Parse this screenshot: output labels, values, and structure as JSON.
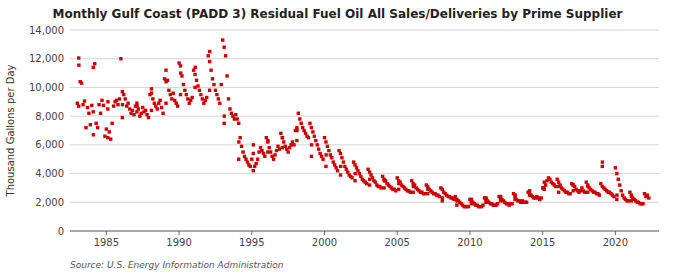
{
  "chart_data": {
    "type": "scatter",
    "title": "Monthly Gulf Coast (PADD 3) Residual Fuel Oil All Sales/Deliveries by Prime Supplier",
    "y_label": "Thousand Gallons per Day",
    "source": "Source: U.S. Energy Information Administration",
    "color": "#cc0000",
    "marker": "square",
    "grid": true,
    "xlim": [
      1982.5,
      2023
    ],
    "xticks": [
      1985,
      1990,
      1995,
      2000,
      2005,
      2010,
      2015,
      2020
    ],
    "ylim": [
      0,
      14000
    ],
    "yticks": [
      0,
      {
        "value": 2000,
        "label": "2,000"
      },
      {
        "value": 4000,
        "label": "4,000"
      },
      {
        "value": 6000,
        "label": "6,000"
      },
      {
        "value": 8000,
        "label": "8,000"
      },
      {
        "value": 10000,
        "label": "10,000"
      },
      {
        "value": 12000,
        "label": "12,000"
      },
      {
        "value": 14000,
        "label": "14,000"
      }
    ],
    "x": [
      1983.0,
      1983.1,
      1983.2,
      1983.3,
      1983.4,
      1983.5,
      1983.6,
      1983.7,
      1983.8,
      1983.9,
      1983.1,
      1983.11,
      1984.0,
      1984.1,
      1984.2,
      1984.3,
      1984.4,
      1984.5,
      1984.6,
      1984.7,
      1984.8,
      1984.9,
      1984.1,
      1984.11,
      1985.0,
      1985.1,
      1985.2,
      1985.3,
      1985.4,
      1985.5,
      1985.6,
      1985.7,
      1985.8,
      1985.9,
      1985.1,
      1985.11,
      1986.0,
      1986.1,
      1986.2,
      1986.3,
      1986.4,
      1986.5,
      1986.6,
      1986.7,
      1986.8,
      1986.9,
      1986.1,
      1986.11,
      1987.0,
      1987.1,
      1987.2,
      1987.3,
      1987.4,
      1987.5,
      1987.6,
      1987.7,
      1987.8,
      1987.9,
      1987.1,
      1987.11,
      1988.0,
      1988.1,
      1988.2,
      1988.3,
      1988.4,
      1988.5,
      1988.6,
      1988.7,
      1988.8,
      1988.9,
      1988.1,
      1988.11,
      1989.0,
      1989.1,
      1989.2,
      1989.3,
      1989.4,
      1989.5,
      1989.6,
      1989.7,
      1989.8,
      1989.9,
      1989.1,
      1989.11,
      1990.0,
      1990.1,
      1990.2,
      1990.3,
      1990.4,
      1990.5,
      1990.6,
      1990.7,
      1990.8,
      1990.9,
      1990.1,
      1990.11,
      1991.0,
      1991.1,
      1991.2,
      1991.3,
      1991.4,
      1991.5,
      1991.6,
      1991.7,
      1991.8,
      1991.9,
      1991.1,
      1991.11,
      1992.0,
      1992.1,
      1992.2,
      1992.3,
      1992.4,
      1992.5,
      1992.6,
      1992.7,
      1992.8,
      1992.9,
      1992.1,
      1992.11,
      1993.0,
      1993.1,
      1993.2,
      1993.3,
      1993.4,
      1993.5,
      1993.6,
      1993.7,
      1993.8,
      1993.9,
      1993.1,
      1993.11,
      1994.0,
      1994.1,
      1994.2,
      1994.3,
      1994.4,
      1994.5,
      1994.6,
      1994.7,
      1994.8,
      1994.9,
      1994.1,
      1994.11,
      1995.0,
      1995.1,
      1995.2,
      1995.3,
      1995.4,
      1995.5,
      1995.6,
      1995.7,
      1995.8,
      1995.9,
      1995.1,
      1995.11,
      1996.0,
      1996.1,
      1996.2,
      1996.3,
      1996.4,
      1996.5,
      1996.6,
      1996.7,
      1996.8,
      1996.9,
      1996.1,
      1996.11,
      1997.0,
      1997.1,
      1997.2,
      1997.3,
      1997.4,
      1997.5,
      1997.6,
      1997.7,
      1997.8,
      1997.9,
      1997.1,
      1997.11,
      1998.0,
      1998.1,
      1998.2,
      1998.3,
      1998.4,
      1998.5,
      1998.6,
      1998.7,
      1998.8,
      1998.9,
      1998.1,
      1998.11,
      1999.0,
      1999.1,
      1999.2,
      1999.3,
      1999.4,
      1999.5,
      1999.6,
      1999.7,
      1999.8,
      1999.9,
      1999.1,
      1999.11,
      2000.0,
      2000.1,
      2000.2,
      2000.3,
      2000.4,
      2000.5,
      2000.6,
      2000.7,
      2000.8,
      2000.9,
      2000.1,
      2000.11,
      2001.0,
      2001.1,
      2001.2,
      2001.3,
      2001.4,
      2001.5,
      2001.6,
      2001.7,
      2001.8,
      2001.9,
      2001.1,
      2001.11,
      2002.0,
      2002.1,
      2002.2,
      2002.3,
      2002.4,
      2002.5,
      2002.6,
      2002.7,
      2002.8,
      2002.9,
      2002.1,
      2002.11,
      2003.0,
      2003.1,
      2003.2,
      2003.3,
      2003.4,
      2003.5,
      2003.6,
      2003.7,
      2003.8,
      2003.9,
      2003.1,
      2003.11,
      2004.0,
      2004.1,
      2004.2,
      2004.3,
      2004.4,
      2004.5,
      2004.6,
      2004.7,
      2004.8,
      2004.9,
      2004.1,
      2004.11,
      2005.0,
      2005.1,
      2005.2,
      2005.3,
      2005.4,
      2005.5,
      2005.6,
      2005.7,
      2005.8,
      2005.9,
      2005.1,
      2005.11,
      2006.0,
      2006.1,
      2006.2,
      2006.3,
      2006.4,
      2006.5,
      2006.6,
      2006.7,
      2006.8,
      2006.9,
      2006.1,
      2006.11,
      2007.0,
      2007.1,
      2007.2,
      2007.3,
      2007.4,
      2007.5,
      2007.6,
      2007.7,
      2007.8,
      2007.9,
      2007.1,
      2007.11,
      2008.0,
      2008.1,
      2008.2,
      2008.3,
      2008.4,
      2008.5,
      2008.6,
      2008.7,
      2008.8,
      2008.9,
      2008.1,
      2008.11,
      2009.0,
      2009.1,
      2009.2,
      2009.3,
      2009.4,
      2009.5,
      2009.6,
      2009.7,
      2009.8,
      2009.9,
      2009.1,
      2009.11,
      2010.0,
      2010.1,
      2010.2,
      2010.3,
      2010.4,
      2010.5,
      2010.6,
      2010.7,
      2010.8,
      2010.9,
      2010.1,
      2010.11,
      2011.0,
      2011.1,
      2011.2,
      2011.3,
      2011.4,
      2011.5,
      2011.6,
      2011.7,
      2011.8,
      2011.9,
      2011.1,
      2011.11,
      2012.0,
      2012.1,
      2012.2,
      2012.3,
      2012.4,
      2012.5,
      2012.6,
      2012.7,
      2012.8,
      2012.9,
      2012.1,
      2012.11,
      2013.0,
      2013.1,
      2013.2,
      2013.3,
      2013.4,
      2013.5,
      2013.6,
      2013.7,
      2013.8,
      2013.9,
      2013.1,
      2013.11,
      2014.0,
      2014.1,
      2014.2,
      2014.3,
      2014.4,
      2014.5,
      2014.6,
      2014.7,
      2014.8,
      2014.9,
      2014.1,
      2014.11,
      2015.0,
      2015.1,
      2015.2,
      2015.3,
      2015.4,
      2015.5,
      2015.6,
      2015.7,
      2015.8,
      2015.9,
      2015.1,
      2015.11,
      2016.0,
      2016.1,
      2016.2,
      2016.3,
      2016.4,
      2016.5,
      2016.6,
      2016.7,
      2016.8,
      2016.9,
      2016.1,
      2016.11,
      2017.0,
      2017.1,
      2017.2,
      2017.3,
      2017.4,
      2017.5,
      2017.6,
      2017.7,
      2017.8,
      2017.9,
      2017.1,
      2017.11,
      2018.0,
      2018.1,
      2018.2,
      2018.3,
      2018.4,
      2018.5,
      2018.6,
      2018.7,
      2018.8,
      2018.9,
      2018.1,
      2018.11,
      2019.0,
      2019.1,
      2019.2,
      2019.3,
      2019.4,
      2019.5,
      2019.6,
      2019.7,
      2019.8,
      2019.9,
      2019.1,
      2019.11,
      2020.0,
      2020.1,
      2020.2,
      2020.3,
      2020.4,
      2020.5,
      2020.6,
      2020.7,
      2020.8,
      2020.9,
      2020.1,
      2020.11,
      2021.0,
      2021.1,
      2021.2,
      2021.3,
      2021.4,
      2021.5,
      2021.6,
      2021.7,
      2021.8,
      2021.9,
      2021.1,
      2021.11,
      2022.0,
      2022.1,
      2022.2,
      2022.3
    ],
    "values": [
      8900,
      12050,
      10400,
      10300,
      8800,
      9050,
      7200,
      8600,
      8200,
      7400,
      8700,
      11550,
      8750,
      11400,
      11650,
      7500,
      7200,
      8800,
      8200,
      9100,
      8750,
      6600,
      8300,
      6700,
      7100,
      6500,
      6900,
      6400,
      7500,
      8700,
      9000,
      9100,
      8800,
      9200,
      8500,
      9000,
      12000,
      9700,
      9500,
      9200,
      8700,
      8900,
      8500,
      8200,
      8400,
      8100,
      7900,
      8800,
      8700,
      8900,
      8500,
      8000,
      8200,
      8600,
      8300,
      8400,
      8100,
      7900,
      8300,
      8700,
      9500,
      9900,
      9200,
      8900,
      8700,
      8500,
      8900,
      9100,
      8600,
      8200,
      8400,
      9600,
      10600,
      11200,
      10500,
      9800,
      9500,
      9200,
      9600,
      9100,
      8900,
      8700,
      8900,
      10400,
      11700,
      11500,
      10800,
      10200,
      9800,
      9500,
      9200,
      8900,
      9100,
      9300,
      9500,
      11000,
      11200,
      10900,
      10500,
      10100,
      9800,
      9500,
      9200,
      8900,
      9100,
      9300,
      10000,
      11400,
      12200,
      11800,
      11200,
      10600,
      10200,
      9800,
      9500,
      9200,
      8900,
      10200,
      9800,
      12500,
      13300,
      12800,
      12200,
      10800,
      9200,
      8500,
      8200,
      8000,
      7800,
      8100,
      7500,
      8000,
      7800,
      7500,
      6500,
      5900,
      5500,
      5200,
      5000,
      4800,
      4600,
      4500,
      5000,
      6200,
      5000,
      4200,
      4500,
      4700,
      5000,
      5500,
      5800,
      5600,
      5400,
      5200,
      5400,
      6000,
      6500,
      6200,
      5800,
      5500,
      5200,
      5000,
      5300,
      5600,
      5900,
      5700,
      5500,
      6300,
      6800,
      6500,
      6200,
      5900,
      5700,
      5500,
      5800,
      6000,
      6200,
      6000,
      5800,
      6500,
      7000,
      7200,
      8200,
      7800,
      7500,
      7200,
      7000,
      6800,
      6600,
      6500,
      6300,
      7000,
      7500,
      7200,
      6900,
      6600,
      6300,
      6000,
      5700,
      5400,
      5200,
      5000,
      5200,
      6000,
      6500,
      6200,
      5900,
      5600,
      5300,
      5100,
      4800,
      4600,
      4400,
      4200,
      4500,
      5300,
      5600,
      5400,
      5100,
      4800,
      4500,
      4300,
      4100,
      3900,
      3800,
      3700,
      3900,
      4500,
      4800,
      4600,
      4400,
      4200,
      4000,
      3800,
      3600,
      3500,
      3400,
      3300,
      3500,
      4000,
      4300,
      4100,
      3900,
      3700,
      3500,
      3400,
      3200,
      3100,
      3100,
      3000,
      3200,
      3600,
      3800,
      3600,
      3500,
      3300,
      3200,
      3100,
      3000,
      2900,
      2900,
      2800,
      3000,
      3500,
      3700,
      3500,
      3400,
      3200,
      3100,
      3000,
      2900,
      2800,
      2800,
      2700,
      2900,
      3300,
      3500,
      3300,
      3200,
      3000,
      2900,
      2800,
      2700,
      2700,
      2600,
      2600,
      2700,
      3100,
      3200,
      3100,
      2900,
      2800,
      2700,
      2600,
      2600,
      2500,
      2500,
      2400,
      2600,
      2900,
      3000,
      2900,
      2700,
      2600,
      2500,
      2400,
      2400,
      2300,
      2300,
      2200,
      2100,
      2300,
      2400,
      2200,
      2100,
      2000,
      1900,
      1800,
      1700,
      1700,
      1700,
      1700,
      1800,
      2100,
      2200,
      2100,
      2000,
      1900,
      1800,
      1800,
      1700,
      1700,
      1700,
      1800,
      1900,
      2200,
      2300,
      2200,
      2100,
      2000,
      1900,
      1900,
      1800,
      1800,
      1800,
      1900,
      2000,
      2300,
      2400,
      2300,
      2200,
      2100,
      2000,
      1900,
      1900,
      1800,
      1900,
      1900,
      2100,
      2400,
      2600,
      2400,
      2200,
      2100,
      2100,
      2000,
      2100,
      2000,
      2000,
      2000,
      2200,
      2500,
      2700,
      2600,
      2500,
      2400,
      2300,
      2300,
      2400,
      2300,
      2200,
      2300,
      2500,
      2800,
      3000,
      2900,
      3200,
      3500,
      3700,
      3600,
      3400,
      3300,
      3200,
      3100,
      3000,
      3400,
      3600,
      3400,
      3200,
      3000,
      2900,
      2800,
      2700,
      2700,
      2600,
      2600,
      2700,
      3100,
      3300,
      3200,
      3100,
      2900,
      2800,
      2700,
      2800,
      3000,
      2800,
      2700,
      2800,
      3200,
      3400,
      3200,
      3000,
      2900,
      2800,
      2700,
      2700,
      2600,
      2600,
      2500,
      2700,
      3100,
      3300,
      3100,
      3000,
      2900,
      2800,
      2700,
      2700,
      2600,
      2500,
      2400,
      4500,
      4800,
      4400,
      4000,
      3600,
      3200,
      2800,
      2500,
      2300,
      2200,
      2100,
      2100,
      2200,
      2500,
      2700,
      2500,
      2300,
      2200,
      2100,
      2000,
      2000,
      1900,
      1900,
      1900,
      2100,
      2400,
      2600,
      2400,
      2500,
      2300
    ]
  }
}
